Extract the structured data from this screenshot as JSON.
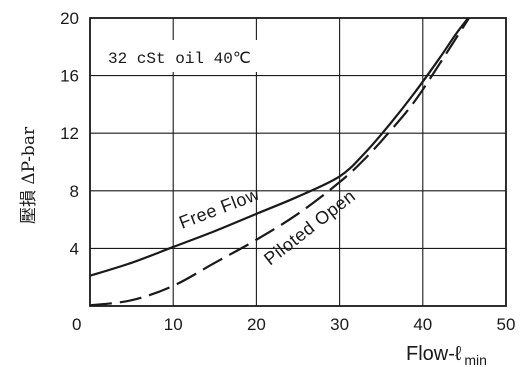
{
  "chart_data": {
    "type": "line",
    "xlabel": "Flow-ℓ min",
    "ylabel": "壓損 ΔP-bar",
    "annotation": "32 cSt oil 40℃",
    "xlim": [
      0,
      50
    ],
    "ylim": [
      0,
      20
    ],
    "x_ticks": [
      0,
      10,
      20,
      30,
      40,
      50
    ],
    "y_ticks": [
      4,
      8,
      12,
      16,
      20
    ],
    "grid": true,
    "colors": {
      "line": "#1a1a1a",
      "grid": "#1a1a1a",
      "background": "#ffffff"
    },
    "series": [
      {
        "name": "Free Flow",
        "style": "solid",
        "points": [
          [
            0,
            2.1
          ],
          [
            5,
            3.0
          ],
          [
            10,
            4.1
          ],
          [
            15,
            5.2
          ],
          [
            20,
            6.4
          ],
          [
            25,
            7.6
          ],
          [
            30,
            9.0
          ],
          [
            33,
            10.6
          ],
          [
            36,
            12.6
          ],
          [
            39,
            14.8
          ],
          [
            42,
            17.2
          ],
          [
            44,
            18.9
          ],
          [
            46,
            20.4
          ]
        ]
      },
      {
        "name": "Piloted Open",
        "style": "dashed",
        "points": [
          [
            0,
            0.05
          ],
          [
            5,
            0.4
          ],
          [
            10,
            1.4
          ],
          [
            15,
            3.0
          ],
          [
            20,
            4.6
          ],
          [
            25,
            6.4
          ],
          [
            30,
            8.6
          ],
          [
            33,
            10.2
          ],
          [
            36,
            12.1
          ],
          [
            39,
            14.2
          ],
          [
            42,
            16.8
          ],
          [
            44,
            18.6
          ],
          [
            46,
            20.4
          ]
        ]
      }
    ]
  }
}
